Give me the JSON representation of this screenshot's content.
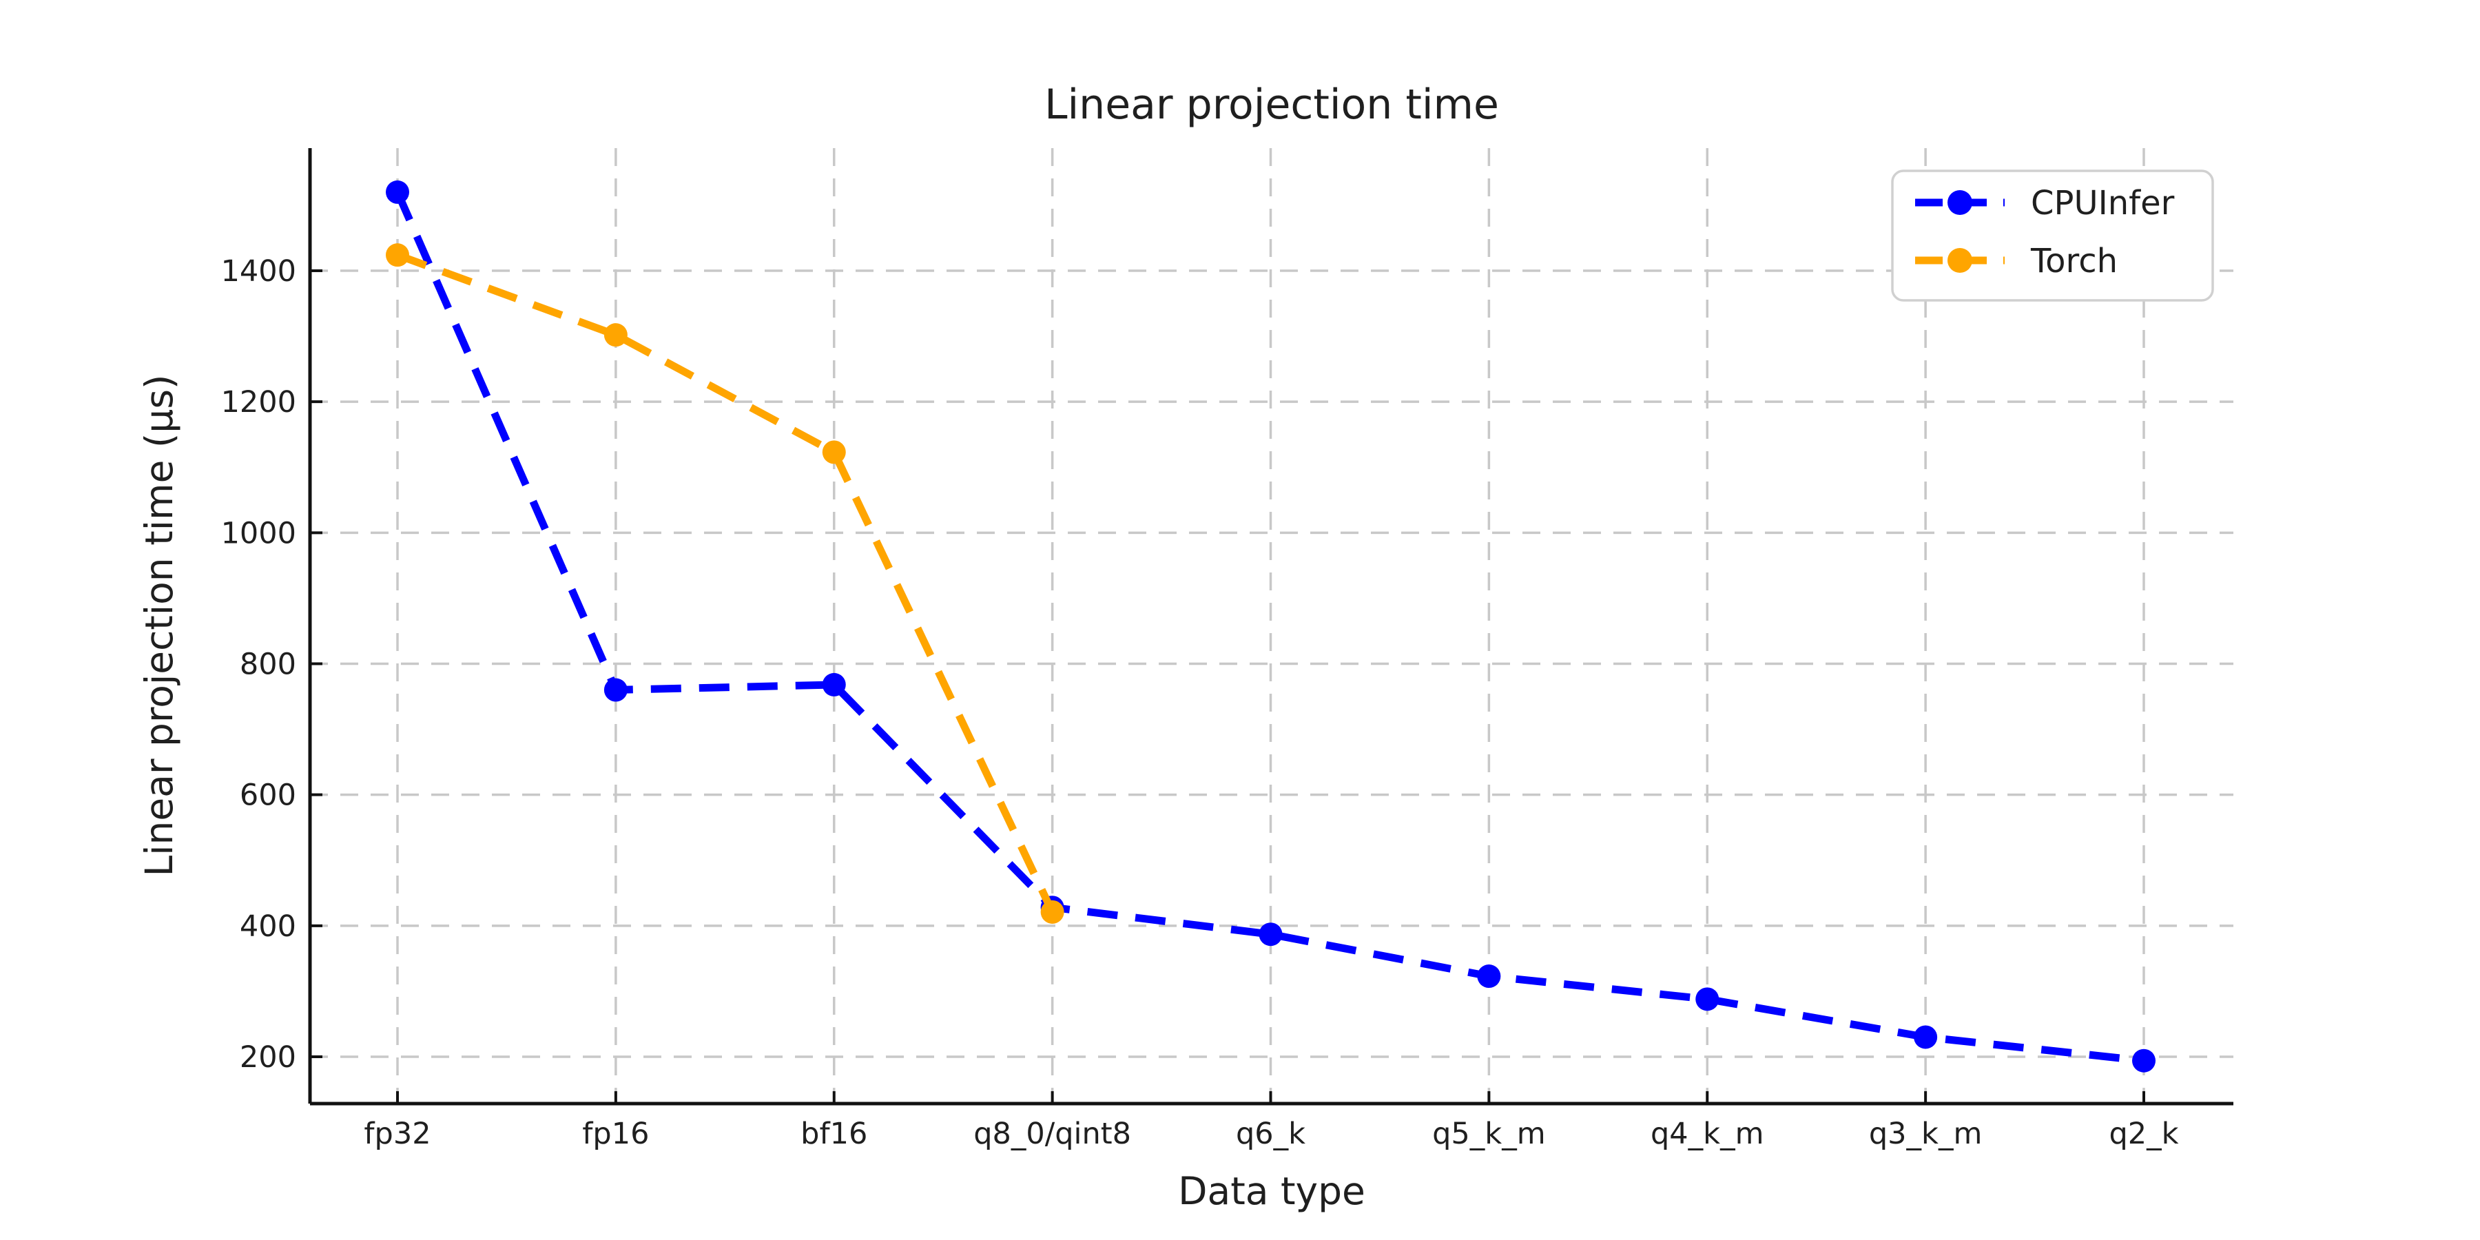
{
  "chart_data": {
    "type": "line",
    "title": "Linear projection time",
    "xlabel": "Data type",
    "ylabel": "Linear projection time (µs)",
    "categories": [
      "fp32",
      "fp16",
      "bf16",
      "q8_0/qint8",
      "q6_k",
      "q5_k_m",
      "q4_k_m",
      "q3_k_m",
      "q2_k"
    ],
    "series": [
      {
        "name": "CPUInfer",
        "color": "#0000ff",
        "line_style": "dashed",
        "marker": "circle",
        "values": [
          1520,
          760,
          768,
          428,
          387,
          323,
          288,
          230,
          194
        ]
      },
      {
        "name": "Torch",
        "color": "#ffa500",
        "line_style": "dashed",
        "marker": "circle",
        "values": [
          1424,
          1302,
          1123,
          421
        ]
      }
    ],
    "y_ticks": [
      200,
      400,
      600,
      800,
      1000,
      1200,
      1400
    ],
    "ylim": [
      130,
      1590
    ],
    "grid": true,
    "grid_style": "dashed",
    "legend_position": "upper right",
    "legend_entries": [
      "CPUInfer",
      "Torch"
    ]
  },
  "style_colors": {
    "grid": "#c8c8c8",
    "spine": "#111111",
    "text": "#1f1f1f",
    "legend_border": "#d0d0d0",
    "background": "#ffffff"
  }
}
